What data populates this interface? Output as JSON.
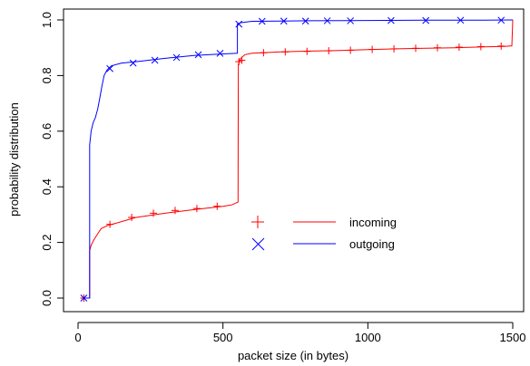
{
  "chart_data": {
    "type": "line",
    "title": "",
    "xlabel": "packet size (in bytes)",
    "ylabel": "probability distribution",
    "xlim": [
      0,
      1500
    ],
    "ylim": [
      0,
      1
    ],
    "x_ticks": [
      "0",
      "500",
      "1000",
      "1500"
    ],
    "y_ticks": [
      "0.0",
      "0.2",
      "0.4",
      "0.6",
      "0.8",
      "1.0"
    ],
    "grid": false,
    "legend_position": "center-right",
    "series": [
      {
        "name": "incoming",
        "color": "#ff0000",
        "marker": "plus",
        "x": [
          20,
          40,
          40,
          45,
          55,
          70,
          80,
          100,
          150,
          200,
          300,
          400,
          500,
          530,
          552,
          553,
          557,
          560,
          575,
          600,
          700,
          800,
          900,
          1000,
          1100,
          1200,
          1300,
          1400,
          1470,
          1497,
          1500
        ],
        "y": [
          0.0,
          0.0,
          0.17,
          0.19,
          0.21,
          0.235,
          0.25,
          0.26,
          0.275,
          0.29,
          0.305,
          0.318,
          0.33,
          0.335,
          0.345,
          0.84,
          0.85,
          0.86,
          0.875,
          0.88,
          0.885,
          0.888,
          0.89,
          0.893,
          0.896,
          0.898,
          0.9,
          0.903,
          0.905,
          0.907,
          1.0
        ],
        "markers_x": [
          20,
          110,
          185,
          260,
          335,
          410,
          480,
          555,
          565,
          640,
          715,
          790,
          865,
          940,
          1015,
          1090,
          1165,
          1240,
          1315,
          1390,
          1460
        ],
        "markers_y": [
          0.0,
          0.265,
          0.29,
          0.305,
          0.315,
          0.322,
          0.33,
          0.85,
          0.855,
          0.882,
          0.885,
          0.887,
          0.889,
          0.891,
          0.894,
          0.896,
          0.898,
          0.9,
          0.902,
          0.904,
          0.906
        ]
      },
      {
        "name": "outgoing",
        "color": "#0000ff",
        "marker": "x",
        "x": [
          20,
          40,
          40,
          45,
          52,
          60,
          68,
          75,
          82,
          90,
          100,
          115,
          150,
          200,
          300,
          400,
          500,
          550,
          550,
          560,
          600,
          700,
          800,
          1000,
          1200,
          1400,
          1500
        ],
        "y": [
          0.0,
          0.0,
          0.55,
          0.6,
          0.63,
          0.65,
          0.68,
          0.72,
          0.76,
          0.8,
          0.82,
          0.835,
          0.845,
          0.85,
          0.862,
          0.872,
          0.878,
          0.88,
          0.985,
          0.99,
          0.995,
          0.996,
          0.997,
          0.998,
          0.999,
          0.999,
          1.0
        ],
        "markers_x": [
          20,
          110,
          190,
          265,
          340,
          415,
          490,
          555,
          635,
          710,
          785,
          860,
          940,
          1080,
          1200,
          1320,
          1460
        ],
        "markers_y": [
          0.0,
          0.825,
          0.845,
          0.855,
          0.865,
          0.875,
          0.88,
          0.985,
          0.995,
          0.996,
          0.996,
          0.997,
          0.997,
          0.998,
          0.998,
          0.999,
          0.999
        ]
      }
    ]
  }
}
